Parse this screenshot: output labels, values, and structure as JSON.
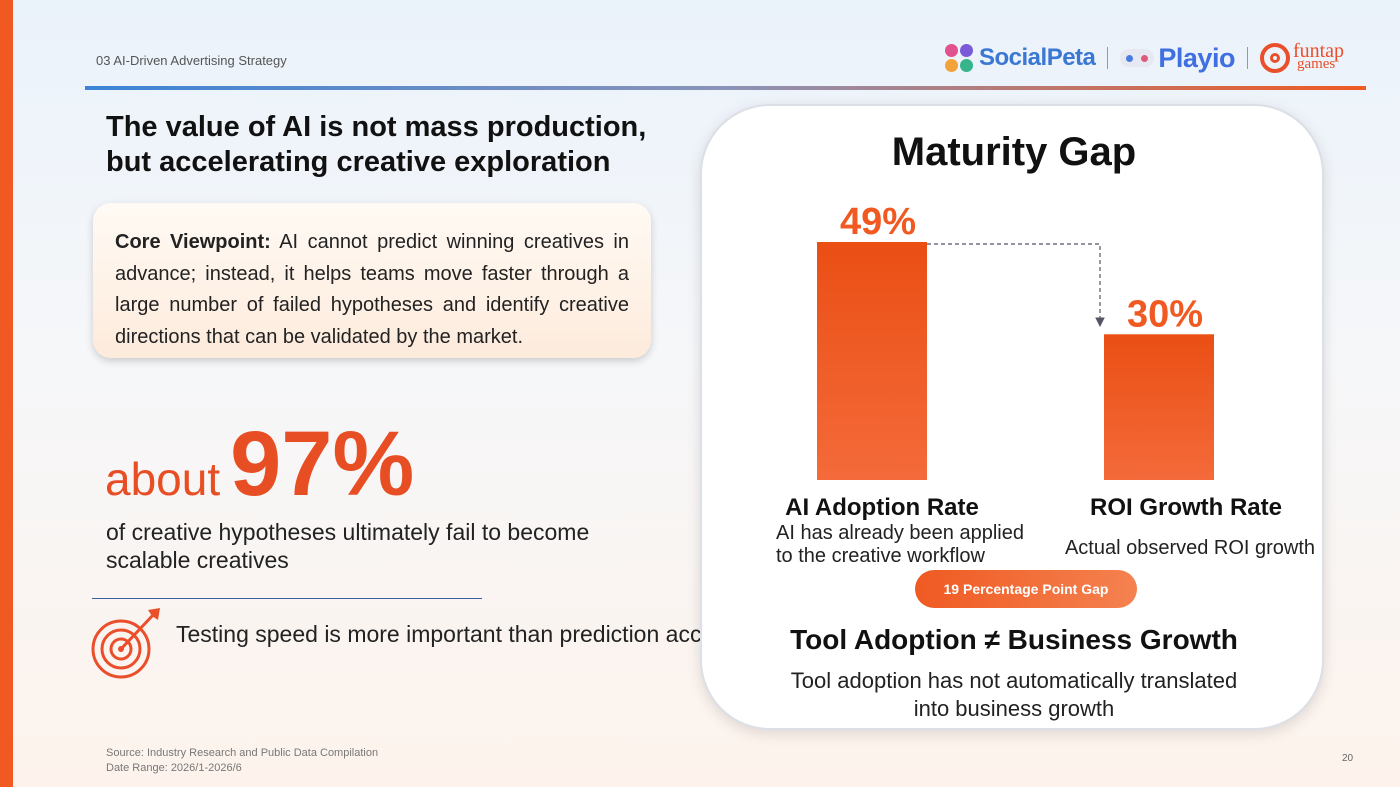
{
  "breadcrumb": "03 AI-Driven Advertising Strategy",
  "logos": {
    "socialpeta": "SocialPeta",
    "playio": "Playio",
    "funtap_line1": "funtap",
    "funtap_line2": "games"
  },
  "headline": {
    "line1": "The value of AI is not mass production,",
    "line2": "but accelerating creative exploration"
  },
  "core": {
    "label": "Core Viewpoint:",
    "text": "AI cannot predict winning creatives in advance; instead, it helps teams move faster through a large number of failed hypotheses and identify creative directions that can be validated by the market."
  },
  "stat": {
    "prefix": "about",
    "value": "97%",
    "description": "of creative hypotheses ultimately fail to become scalable creatives"
  },
  "tip": "Testing speed is more important than prediction accuracy",
  "source": {
    "line1": "Source: Industry Research and Public Data Compilation",
    "line2": "Date Range: 2026/1-2026/6"
  },
  "page_number": "20",
  "chart_data": {
    "type": "bar",
    "title": "Maturity Gap",
    "categories": [
      "AI Adoption Rate",
      "ROI Growth Rate"
    ],
    "values": [
      49,
      30
    ],
    "value_labels": [
      "49%",
      "30%"
    ],
    "descriptions": [
      "AI has already been applied to the creative workflow",
      "Actual observed ROI growth"
    ],
    "descriptions_lines": [
      [
        "AI has already been applied",
        "to the creative workflow"
      ],
      [
        "Actual observed ROI growth"
      ]
    ],
    "gap_label": "19 Percentage Point Gap",
    "conclusion": "Tool Adoption ≠ Business Growth",
    "conclusion_sub": "Tool adoption has not automatically translated into business growth",
    "bar_color": "#f05a22",
    "grid": false
  },
  "colors": {
    "accent": "#f05a22",
    "text": "#111111"
  }
}
